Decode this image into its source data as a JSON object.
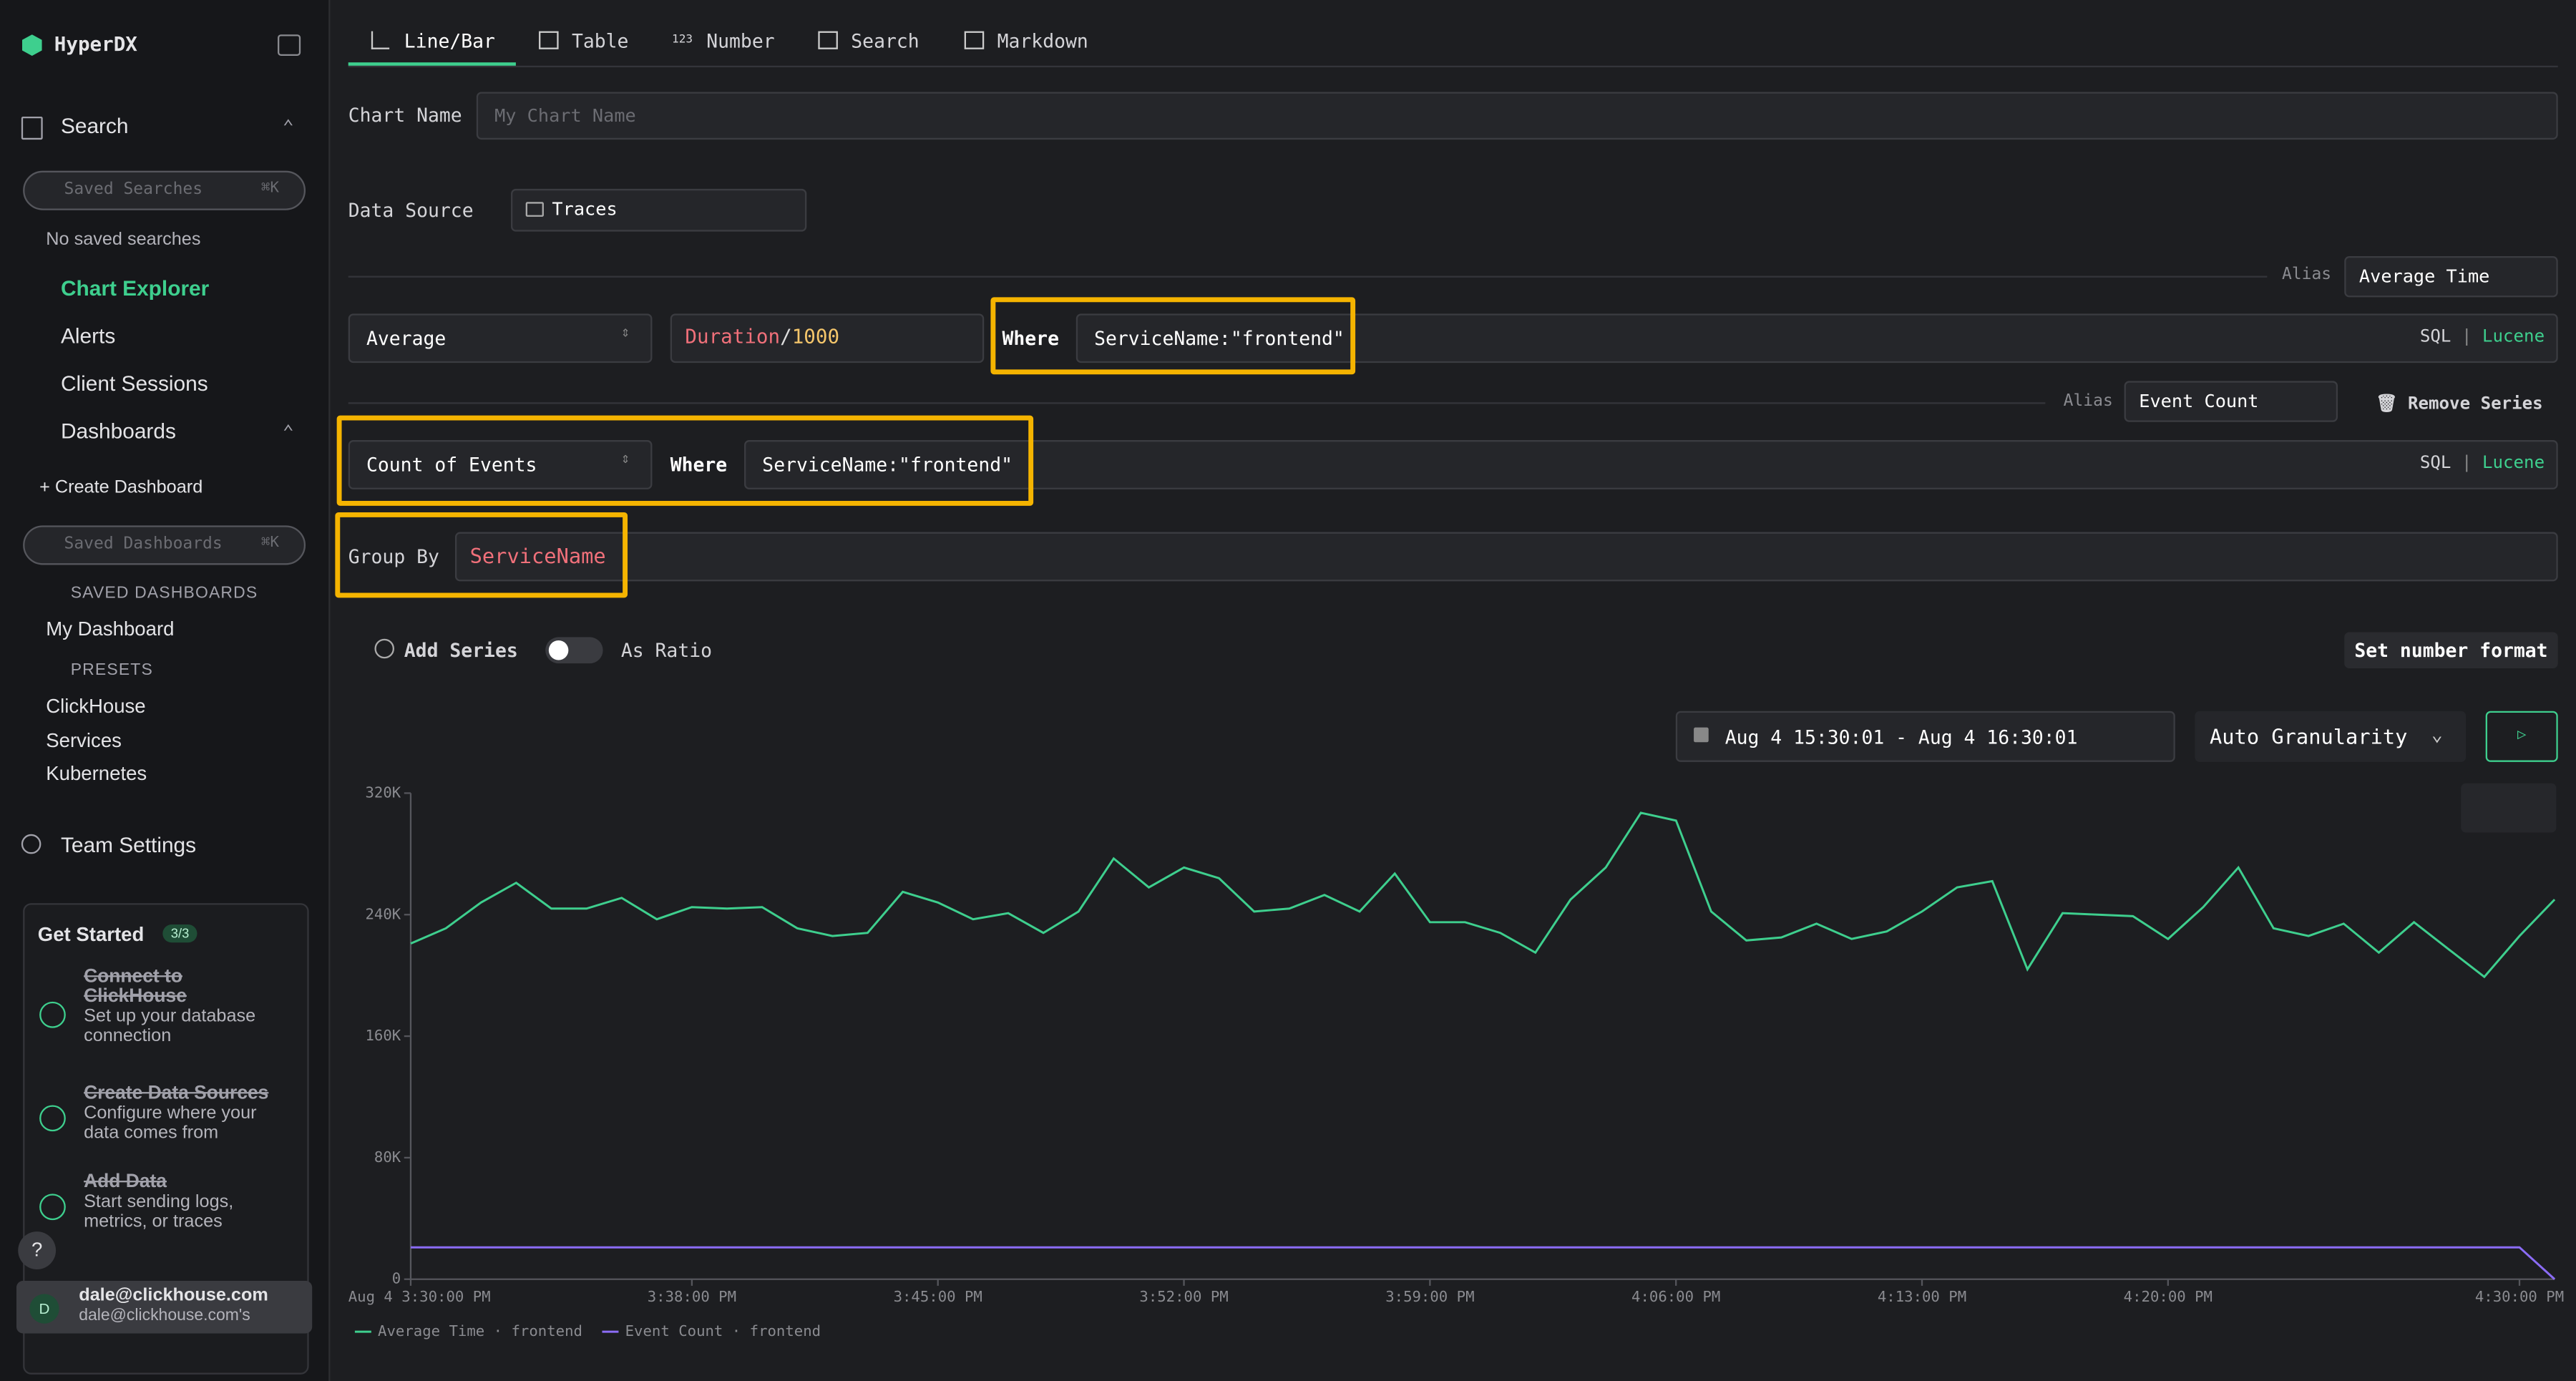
{
  "sidebar": {
    "brand": "HyperDX",
    "search": "Search",
    "saved_searches_placeholder": "Saved Searches",
    "shortcut": "⌘K",
    "no_saved": "No saved searches",
    "chart_explorer": "Chart Explorer",
    "alerts": "Alerts",
    "client_sessions": "Client Sessions",
    "dashboards": "Dashboards",
    "create_dashboard": "+ Create Dashboard",
    "saved_dashboards_placeholder": "Saved Dashboards",
    "shortcut2": "⌘K",
    "saved_dashboards_heading": "SAVED DASHBOARDS",
    "my_dashboard": "My Dashboard",
    "presets_heading": "PRESETS",
    "presets": [
      "ClickHouse",
      "Services",
      "Kubernetes"
    ],
    "team_settings": "Team Settings",
    "get_started": {
      "title": "Get Started",
      "progress": "3/3",
      "steps": [
        {
          "title": "Connect to ClickHouse",
          "desc": "Set up your database connection"
        },
        {
          "title": "Create Data Sources",
          "desc": "Configure where your data comes from"
        },
        {
          "title": "Add Data",
          "desc": "Start sending logs, metrics, or traces"
        }
      ]
    },
    "help": "?",
    "user": {
      "initial": "D",
      "email": "dale@clickhouse.com",
      "org": "dale@clickhouse.com's"
    }
  },
  "tabs": [
    {
      "icon": "",
      "label": "Line/Bar"
    },
    {
      "icon": "",
      "label": "Table"
    },
    {
      "icon": "123",
      "label": "Number"
    },
    {
      "icon": "",
      "label": "Search"
    },
    {
      "icon": "",
      "label": "Markdown"
    }
  ],
  "form": {
    "chart_name_label": "Chart Name",
    "chart_name_placeholder": "My Chart Name",
    "data_source_label": "Data Source",
    "data_source": "Traces",
    "series": [
      {
        "alias_label": "Alias",
        "alias": "Average Time",
        "agg": "Average",
        "expr_field": "Duration",
        "expr_op": "/",
        "expr_num": "1000",
        "where_label": "Where",
        "where": "ServiceName:\"frontend\"",
        "sql": "SQL",
        "sep": "|",
        "lucene": "Lucene"
      },
      {
        "alias_label": "Alias",
        "alias": "Event Count",
        "remove": "Remove Series",
        "agg": "Count of Events",
        "where_label": "Where",
        "where": "ServiceName:\"frontend\"",
        "sql": "SQL",
        "sep": "|",
        "lucene": "Lucene"
      }
    ],
    "group_by_label": "Group By",
    "group_by": "ServiceName",
    "add_series": "Add Series",
    "as_ratio": "As Ratio",
    "number_format": "Set number format",
    "time_range": "Aug 4 15:30:01 - Aug 4 16:30:01",
    "granularity": "Auto Granularity"
  },
  "chart_data": {
    "type": "line",
    "x": [
      "15:30",
      "15:31",
      "15:32",
      "15:33",
      "15:34",
      "15:35",
      "15:36",
      "15:37",
      "15:38",
      "15:39",
      "15:40",
      "15:41",
      "15:42",
      "15:43",
      "15:44",
      "15:45",
      "15:46",
      "15:47",
      "15:48",
      "15:49",
      "15:50",
      "15:51",
      "15:52",
      "15:53",
      "15:54",
      "15:55",
      "15:56",
      "15:57",
      "15:58",
      "15:59",
      "16:00",
      "16:01",
      "16:02",
      "16:03",
      "16:04",
      "16:05",
      "16:06",
      "16:07",
      "16:08",
      "16:09",
      "16:10",
      "16:11",
      "16:12",
      "16:13",
      "16:14",
      "16:15",
      "16:16",
      "16:17",
      "16:18",
      "16:19",
      "16:20",
      "16:21",
      "16:22",
      "16:23",
      "16:24",
      "16:25",
      "16:26",
      "16:27",
      "16:28",
      "16:29",
      "16:30",
      "16:31"
    ],
    "series": [
      {
        "name": "Average Time · frontend",
        "color": "#3ecf8e",
        "values": [
          221000,
          231000,
          248000,
          261000,
          244000,
          244000,
          251000,
          237000,
          245000,
          244000,
          245000,
          231000,
          226000,
          228000,
          255000,
          248000,
          237000,
          241000,
          228000,
          242000,
          277000,
          258000,
          271000,
          264000,
          242000,
          244000,
          253000,
          242000,
          267000,
          235000,
          235000,
          228000,
          215000,
          250000,
          271000,
          307000,
          302000,
          242000,
          223000,
          225000,
          234000,
          224000,
          229000,
          242000,
          258000,
          262000,
          204000,
          241000,
          240000,
          239000,
          224000,
          245000,
          271000,
          231000,
          226000,
          234000,
          215000,
          235000,
          217000,
          199000,
          226000,
          250000
        ]
      },
      {
        "name": "Event Count · frontend",
        "color": "#8b6cf6",
        "values": [
          21000,
          21000,
          21000,
          21000,
          21000,
          21000,
          21000,
          21000,
          21000,
          21000,
          21000,
          21000,
          21000,
          21000,
          21000,
          21000,
          21000,
          21000,
          21000,
          21000,
          21000,
          21000,
          21000,
          21000,
          21000,
          21000,
          21000,
          21000,
          21000,
          21000,
          21000,
          21000,
          21000,
          21000,
          21000,
          21000,
          21000,
          21000,
          21000,
          21000,
          21000,
          21000,
          21000,
          21000,
          21000,
          21000,
          21000,
          21000,
          21000,
          21000,
          21000,
          21000,
          21000,
          21000,
          21000,
          21000,
          21000,
          21000,
          21000,
          21000,
          21000,
          0
        ]
      }
    ],
    "xlim": [
      "15:30",
      "16:31"
    ],
    "xticks": [
      {
        "value": "15:30",
        "label": "Aug 4 3:30:00 PM"
      },
      {
        "value": "15:38",
        "label": "3:38:00 PM"
      },
      {
        "value": "15:45",
        "label": "3:45:00 PM"
      },
      {
        "value": "15:52",
        "label": "3:52:00 PM"
      },
      {
        "value": "15:59",
        "label": "3:59:00 PM"
      },
      {
        "value": "16:06",
        "label": "4:06:00 PM"
      },
      {
        "value": "16:13",
        "label": "4:13:00 PM"
      },
      {
        "value": "16:20",
        "label": "4:20:00 PM"
      },
      {
        "value": "16:30",
        "label": "4:30:00 PM"
      }
    ],
    "ylim": [
      0,
      320000
    ],
    "yticks": [
      0,
      {
        "value": 80000,
        "label": "80K"
      },
      {
        "value": 160000,
        "label": "160K"
      },
      {
        "value": 240000,
        "label": "240K"
      },
      {
        "value": 320000,
        "label": "320K"
      }
    ],
    "grid": false,
    "legend": "bottom-left"
  }
}
